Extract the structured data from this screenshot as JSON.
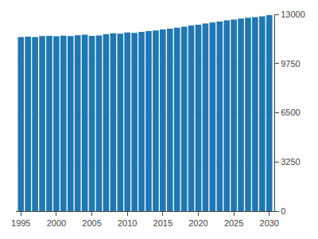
{
  "chart_data": {
    "type": "bar",
    "x": [
      1995,
      1996,
      1997,
      1998,
      1999,
      2000,
      2001,
      2002,
      2003,
      2004,
      2005,
      2006,
      2007,
      2008,
      2009,
      2010,
      2011,
      2012,
      2013,
      2014,
      2015,
      2016,
      2017,
      2018,
      2019,
      2020,
      2021,
      2022,
      2023,
      2024,
      2025,
      2026,
      2027,
      2028,
      2029,
      2030
    ],
    "values": [
      11500,
      11530,
      11500,
      11560,
      11580,
      11550,
      11590,
      11570,
      11620,
      11660,
      11580,
      11600,
      11680,
      11750,
      11720,
      11800,
      11780,
      11840,
      11900,
      11940,
      12000,
      12050,
      12120,
      12180,
      12260,
      12320,
      12390,
      12460,
      12530,
      12600,
      12660,
      12720,
      12780,
      12820,
      12870,
      12950
    ],
    "xlim": [
      1994.3,
      2030.7
    ],
    "xticks": [
      1995,
      2000,
      2005,
      2010,
      2015,
      2020,
      2025,
      2030
    ],
    "ylim": [
      0,
      13000
    ],
    "yticks": [
      0,
      3250,
      6500,
      9750,
      13000
    ],
    "grid": true
  }
}
